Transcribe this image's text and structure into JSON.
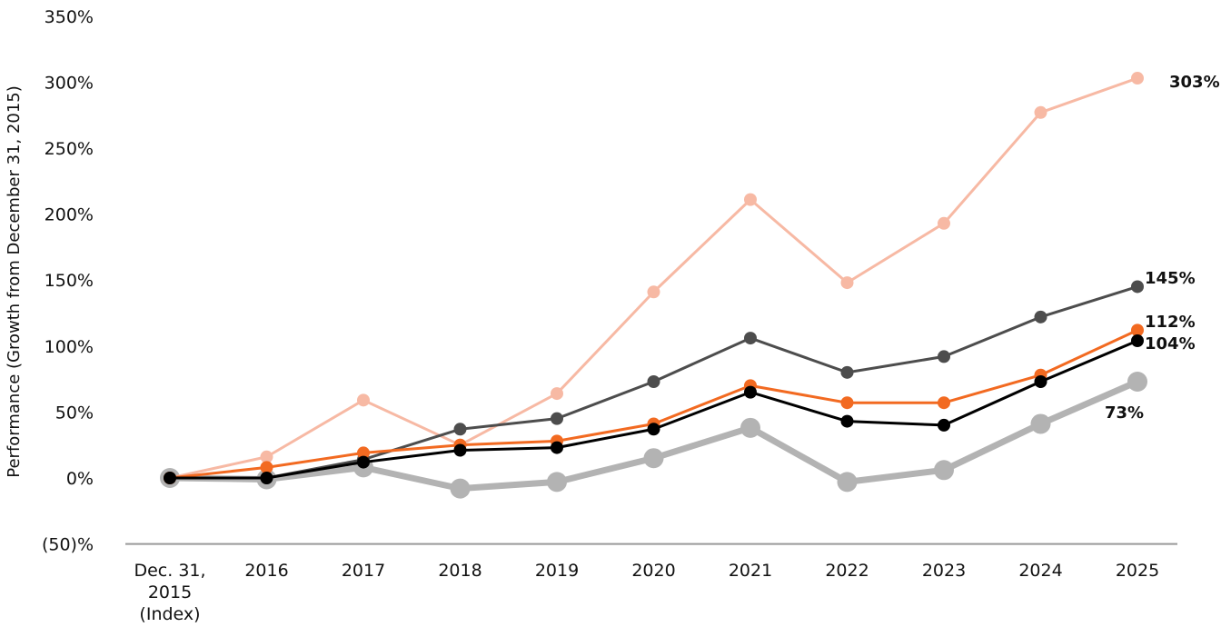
{
  "chart_data": {
    "type": "line",
    "title": "",
    "xlabel": "",
    "ylabel": "Performance (Growth from December 31, 2015)",
    "ylim": [
      -50,
      350
    ],
    "ytick_values": [
      -50,
      0,
      50,
      100,
      150,
      200,
      250,
      300,
      350
    ],
    "ytick_labels": [
      "(50)%",
      "0%",
      "50%",
      "100%",
      "150%",
      "200%",
      "250%",
      "300%",
      "350%"
    ],
    "categories": [
      [
        "Dec. 31,",
        "2015",
        "(Index)"
      ],
      [
        "2016"
      ],
      [
        "2017"
      ],
      [
        "2018"
      ],
      [
        "2019"
      ],
      [
        "2020"
      ],
      [
        "2021"
      ],
      [
        "2022"
      ],
      [
        "2023"
      ],
      [
        "2024"
      ],
      [
        "2025"
      ]
    ],
    "grid": false,
    "series": [
      {
        "color": "#F7B9A4",
        "values": [
          0,
          16,
          59,
          25,
          64,
          141,
          211,
          148,
          193,
          277,
          303
        ],
        "end_label": "303%"
      },
      {
        "color": "#4D4D4D",
        "values": [
          0,
          0,
          14,
          37,
          45,
          73,
          106,
          80,
          92,
          122,
          145
        ],
        "end_label": "145%"
      },
      {
        "color": "#F26A21",
        "values": [
          0,
          8,
          19,
          25,
          28,
          41,
          70,
          57,
          57,
          78,
          112
        ],
        "end_label": "112%"
      },
      {
        "color": "#000000",
        "values": [
          0,
          0,
          12,
          21,
          23,
          37,
          65,
          43,
          40,
          73,
          104
        ],
        "end_label": "104%"
      },
      {
        "color": "#B3B3B3",
        "values": [
          0,
          -1,
          8,
          -8,
          -3,
          15,
          38,
          -3,
          6,
          41,
          73
        ],
        "end_label": "73%"
      }
    ]
  }
}
